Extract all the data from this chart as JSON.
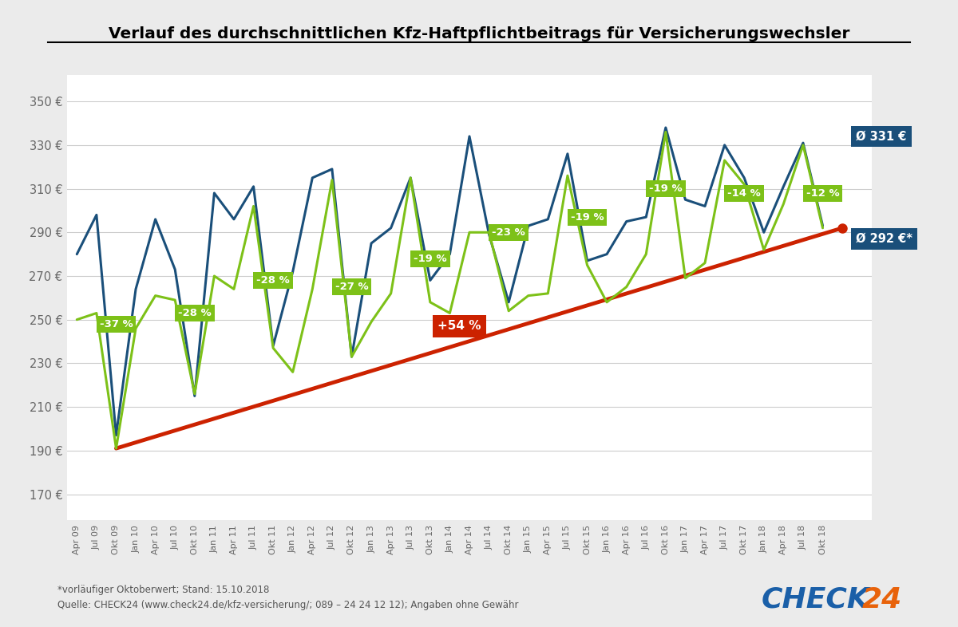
{
  "title": "Verlauf des durchschnittlichen Kfz-Haftpflichtbeitrags für Versicherungswechsler",
  "yticks": [
    170,
    190,
    210,
    230,
    250,
    270,
    290,
    310,
    330,
    350
  ],
  "ylim": [
    158,
    362
  ],
  "background_color": "#ebebeb",
  "plot_bg_color": "#ffffff",
  "blue_color": "#1a4f7a",
  "green_color": "#7dc118",
  "red_color": "#cc2200",
  "footnote1": "*vorläufiger Oktoberwert; Stand: 15.10.2018",
  "footnote2": "Quelle: CHECK24 (www.check24.de/kfz-versicherung/; 089 – 24 24 12 12); Angaben ohne Gewähr",
  "label_331": "Ø 331 €",
  "label_292": "Ø 292 €*",
  "x_labels": [
    "Apr 09",
    "Jul 09",
    "Okt 09",
    "Jan 10",
    "Apr 10",
    "Jul 10",
    "Okt 10",
    "Jan 11",
    "Apr 11",
    "Jul 11",
    "Okt 11",
    "Jan 12",
    "Apr 12",
    "Jul 12",
    "Okt 12",
    "Jan 13",
    "Apr 13",
    "Jul 13",
    "Okt 13",
    "Jan 14",
    "Apr 14",
    "Jul 14",
    "Okt 14",
    "Jan 15",
    "Apr 15",
    "Jul 15",
    "Okt 15",
    "Jan 16",
    "Apr 16",
    "Jul 16",
    "Okt 16",
    "Jan 17",
    "Apr 17",
    "Jul 17",
    "Okt 17",
    "Jan 18",
    "Apr 18",
    "Jul 18",
    "Okt 18"
  ],
  "blue_values": [
    280,
    298,
    197,
    264,
    296,
    273,
    215,
    308,
    296,
    311,
    238,
    272,
    315,
    319,
    233,
    285,
    292,
    315,
    268,
    280,
    334,
    289,
    258,
    293,
    296,
    326,
    277,
    280,
    295,
    297,
    338,
    305,
    302,
    330,
    315,
    290,
    311,
    331,
    293
  ],
  "green_values": [
    250,
    253,
    191,
    246,
    261,
    259,
    216,
    270,
    264,
    302,
    237,
    226,
    264,
    314,
    233,
    249,
    262,
    315,
    258,
    253,
    290,
    290,
    254,
    261,
    262,
    316,
    275,
    258,
    265,
    280,
    336,
    269,
    276,
    323,
    312,
    282,
    303,
    330,
    292
  ],
  "red_line_x": [
    2,
    39
  ],
  "red_line_y": [
    191,
    292
  ],
  "green_labels": [
    {
      "xi": 2,
      "yi": 248,
      "text": "-37 %"
    },
    {
      "xi": 6,
      "yi": 253,
      "text": "-28 %"
    },
    {
      "xi": 10,
      "yi": 268,
      "text": "-28 %"
    },
    {
      "xi": 14,
      "yi": 265,
      "text": "-27 %"
    },
    {
      "xi": 18,
      "yi": 278,
      "text": "-19 %"
    },
    {
      "xi": 22,
      "yi": 290,
      "text": "-23 %"
    },
    {
      "xi": 26,
      "yi": 297,
      "text": "-19 %"
    },
    {
      "xi": 30,
      "yi": 310,
      "text": "-19 %"
    },
    {
      "xi": 34,
      "yi": 308,
      "text": "-14 %"
    },
    {
      "xi": 38,
      "yi": 308,
      "text": "-12 %"
    }
  ],
  "red_label_xi": 19.5,
  "red_label_yi": 247,
  "red_label_text": "+54 %"
}
